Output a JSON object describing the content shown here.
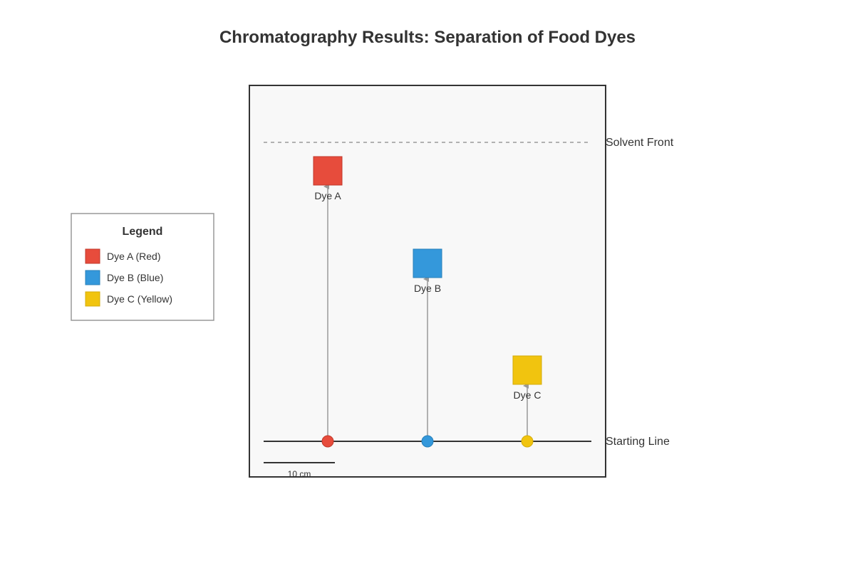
{
  "title": "Chromatography Results: Separation of Food Dyes",
  "solvent_front_label": "Solvent Front",
  "starting_line_label": "Starting Line",
  "scale_label": "10 cm",
  "legend": {
    "title": "Legend",
    "items": [
      {
        "label": "Dye A (Red)",
        "color": "#e74c3c"
      },
      {
        "label": "Dye B (Blue)",
        "color": "#3498db"
      },
      {
        "label": "Dye C (Yellow)",
        "color": "#f1c40f"
      }
    ]
  },
  "dyes": [
    {
      "label": "Dye A",
      "color": "#e74c3c",
      "stroke": "#c0392b"
    },
    {
      "label": "Dye B",
      "color": "#3498db",
      "stroke": "#2980b9"
    },
    {
      "label": "Dye C",
      "color": "#f1c40f",
      "stroke": "#d4ac0d"
    }
  ]
}
